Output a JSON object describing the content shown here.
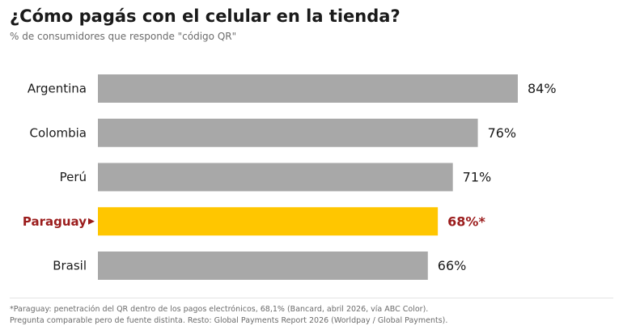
{
  "header": {
    "title": "¿Cómo pagás con el celular en la tienda?",
    "subtitle": "% de consumidores que responde \"código QR\""
  },
  "colors": {
    "bar_default": "#a8a8a8",
    "bar_highlight": "#ffc600",
    "label_default": "#1a1a1a",
    "label_highlight": "#9b1c1c"
  },
  "chart_data": {
    "type": "bar",
    "orientation": "horizontal",
    "categories": [
      "Argentina",
      "Colombia",
      "Perú",
      "Paraguay",
      "Brasil"
    ],
    "values": [
      84,
      76,
      71,
      68,
      66
    ],
    "value_labels": [
      "84%",
      "76%",
      "71%",
      "68%*",
      "66%"
    ],
    "highlight": [
      "Paraguay"
    ],
    "title": "¿Cómo pagás con el celular en la tienda?",
    "subtitle": "% de consumidores que responde \"código QR\"",
    "xlim": [
      0,
      84
    ],
    "grid": false
  },
  "footnote": {
    "line1": "*Paraguay: penetración del QR dentro de los pagos electrónicos, 68,1% (Bancard, abril 2026, vía ABC Color).",
    "line2": "Pregunta comparable pero de fuente distinta. Resto: Global Payments Report 2026 (Worldpay / Global Payments)."
  }
}
